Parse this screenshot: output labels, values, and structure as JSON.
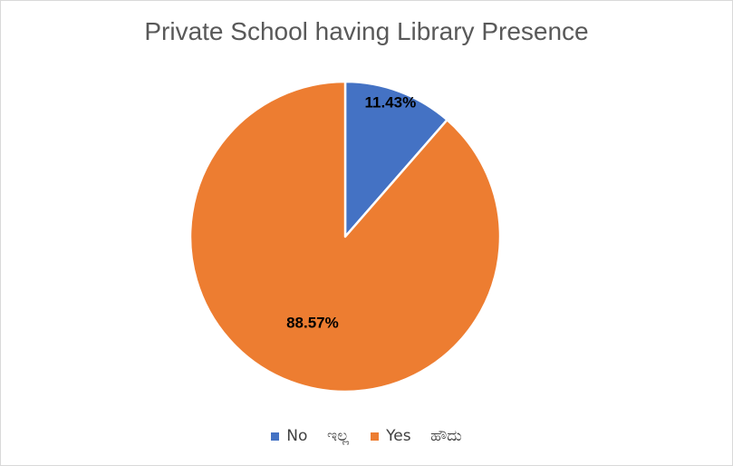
{
  "chart_data": {
    "type": "pie",
    "title": "Private School having Library Presence",
    "categories": [
      "No    ಇಲ್ಲ",
      "Yes    ಹೌದು"
    ],
    "values": [
      11.43,
      88.57
    ],
    "labels": [
      "11.43%",
      "88.57%"
    ],
    "colors": [
      "#4472C4",
      "#ED7D31"
    ],
    "start_angle_deg": 0,
    "direction": "clockwise",
    "legend_position": "bottom"
  }
}
